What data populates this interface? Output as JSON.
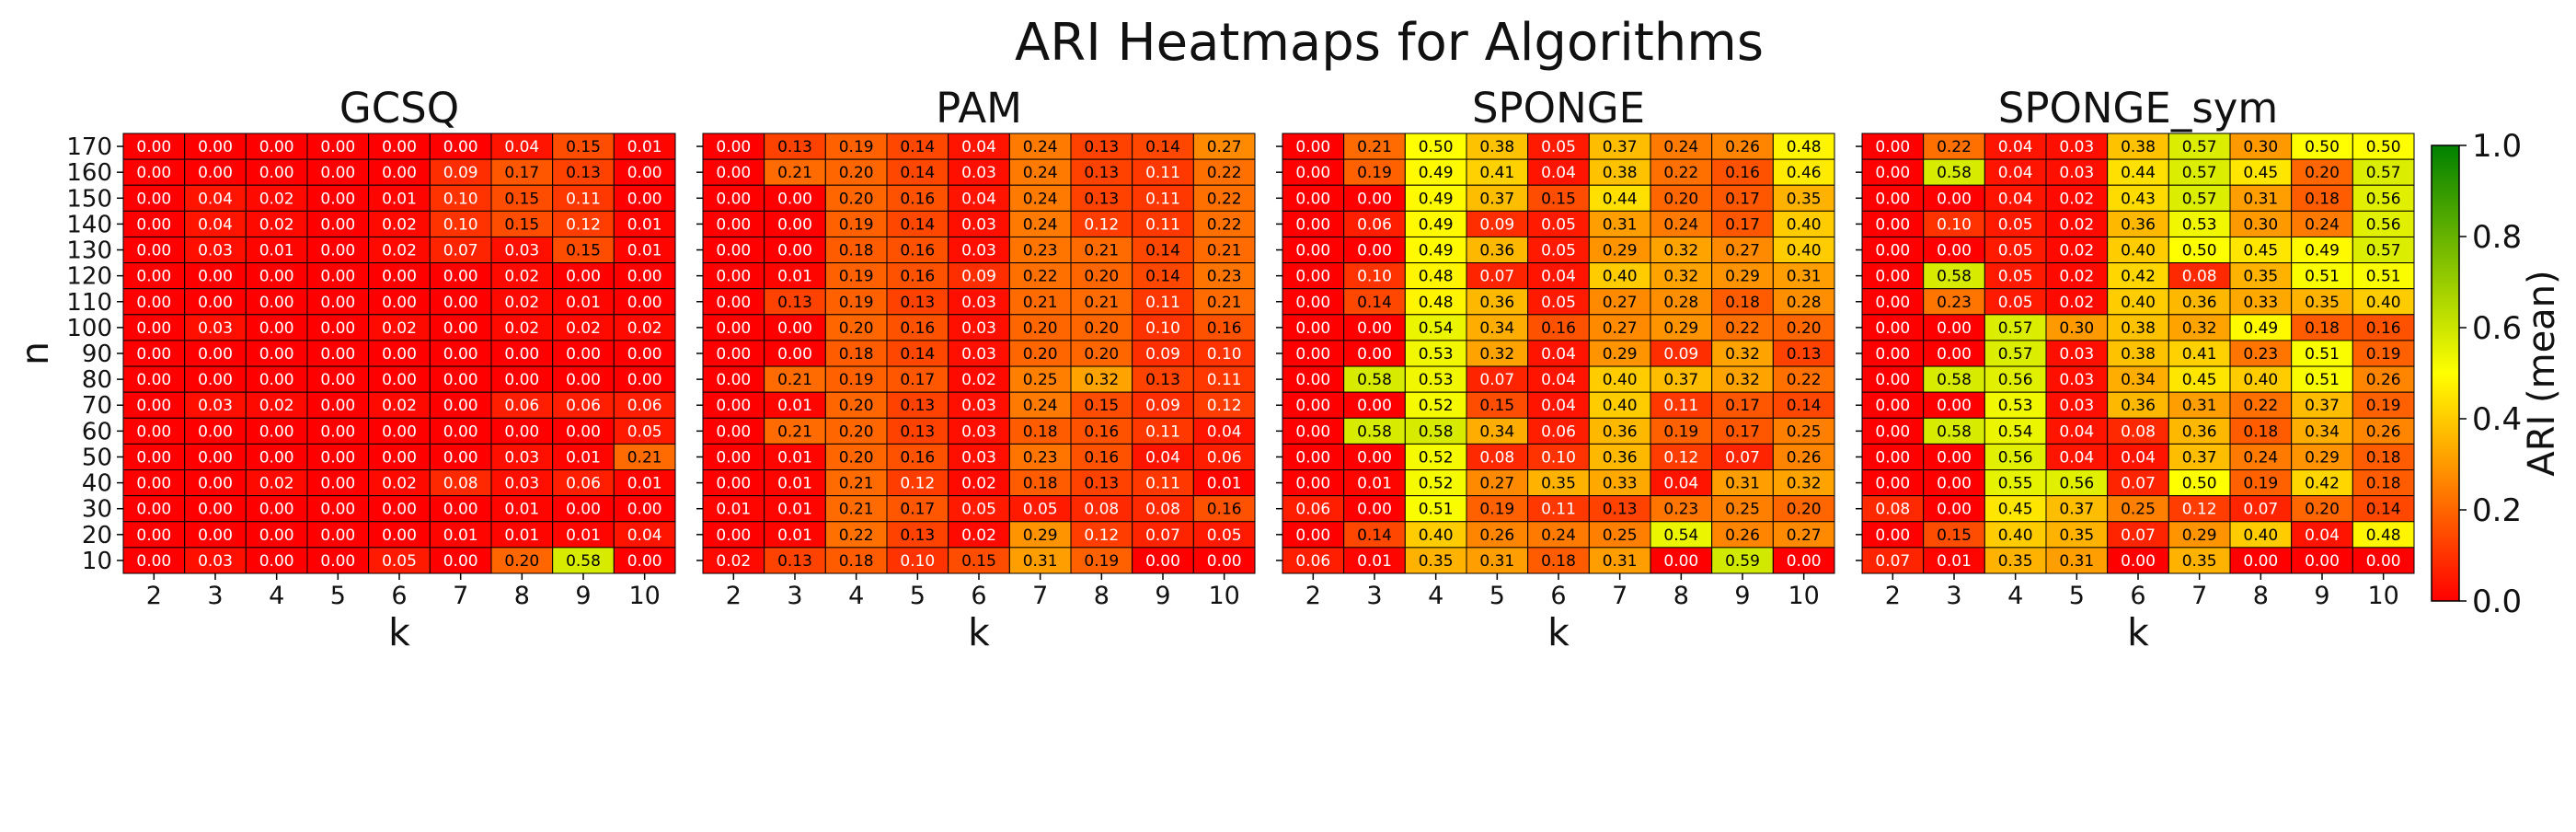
{
  "figure_title": "ARI Heatmaps for Algorithms",
  "colorbar": {
    "label": "ARI (mean)",
    "ticks": [
      "0.0",
      "0.2",
      "0.4",
      "0.6",
      "0.8",
      "1.0"
    ],
    "colors": [
      "#ff0000",
      "#ffff00",
      "#008000"
    ]
  },
  "chart_data": [
    {
      "type": "heatmap",
      "title": "GCSQ",
      "xlabel": "k",
      "ylabel": "n",
      "x": [
        "2",
        "3",
        "4",
        "5",
        "6",
        "7",
        "8",
        "9",
        "10"
      ],
      "y": [
        "170",
        "160",
        "150",
        "140",
        "130",
        "120",
        "110",
        "100",
        "90",
        "80",
        "70",
        "60",
        "50",
        "40",
        "30",
        "20",
        "10"
      ],
      "values": [
        [
          0.0,
          0.0,
          0.0,
          0.0,
          0.0,
          0.0,
          0.04,
          0.15,
          0.01
        ],
        [
          0.0,
          0.0,
          0.0,
          0.0,
          0.0,
          0.09,
          0.17,
          0.13,
          0.0
        ],
        [
          0.0,
          0.04,
          0.02,
          0.0,
          0.01,
          0.1,
          0.15,
          0.11,
          0.0
        ],
        [
          0.0,
          0.04,
          0.02,
          0.0,
          0.02,
          0.1,
          0.15,
          0.12,
          0.01
        ],
        [
          0.0,
          0.03,
          0.01,
          0.0,
          0.02,
          0.07,
          0.03,
          0.15,
          0.01
        ],
        [
          0.0,
          0.0,
          0.0,
          0.0,
          0.0,
          0.0,
          0.02,
          0.0,
          0.0
        ],
        [
          0.0,
          0.0,
          0.0,
          0.0,
          0.0,
          0.0,
          0.02,
          0.01,
          0.0
        ],
        [
          0.0,
          0.03,
          0.0,
          0.0,
          0.02,
          0.0,
          0.02,
          0.02,
          0.02
        ],
        [
          0.0,
          0.0,
          0.0,
          0.0,
          0.0,
          0.0,
          0.0,
          0.0,
          0.0
        ],
        [
          0.0,
          0.0,
          0.0,
          0.0,
          0.0,
          0.0,
          0.0,
          0.0,
          0.0
        ],
        [
          0.0,
          0.03,
          0.02,
          0.0,
          0.02,
          0.0,
          0.06,
          0.06,
          0.06
        ],
        [
          0.0,
          0.0,
          0.0,
          0.0,
          0.0,
          0.0,
          0.0,
          0.0,
          0.05
        ],
        [
          0.0,
          0.0,
          0.0,
          0.0,
          0.0,
          0.0,
          0.03,
          0.01,
          0.21
        ],
        [
          0.0,
          0.0,
          0.02,
          0.0,
          0.02,
          0.08,
          0.03,
          0.06,
          0.01
        ],
        [
          0.0,
          0.0,
          0.0,
          0.0,
          0.0,
          0.0,
          0.01,
          0.0,
          0.0
        ],
        [
          0.0,
          0.0,
          0.0,
          0.0,
          0.0,
          0.01,
          0.01,
          0.01,
          0.04
        ],
        [
          0.0,
          0.03,
          0.0,
          0.0,
          0.05,
          0.0,
          0.2,
          0.58,
          0.0
        ]
      ]
    },
    {
      "type": "heatmap",
      "title": "PAM",
      "xlabel": "k",
      "ylabel": "n",
      "x": [
        "2",
        "3",
        "4",
        "5",
        "6",
        "7",
        "8",
        "9",
        "10"
      ],
      "y": [
        "170",
        "160",
        "150",
        "140",
        "130",
        "120",
        "110",
        "100",
        "90",
        "80",
        "70",
        "60",
        "50",
        "40",
        "30",
        "20",
        "10"
      ],
      "values": [
        [
          0.0,
          0.13,
          0.19,
          0.14,
          0.04,
          0.24,
          0.13,
          0.14,
          0.27
        ],
        [
          0.0,
          0.21,
          0.2,
          0.14,
          0.03,
          0.24,
          0.13,
          0.11,
          0.22
        ],
        [
          0.0,
          0.0,
          0.2,
          0.16,
          0.04,
          0.24,
          0.13,
          0.11,
          0.22
        ],
        [
          0.0,
          0.0,
          0.19,
          0.14,
          0.03,
          0.24,
          0.12,
          0.11,
          0.22
        ],
        [
          0.0,
          0.0,
          0.18,
          0.16,
          0.03,
          0.23,
          0.21,
          0.14,
          0.21
        ],
        [
          0.0,
          0.01,
          0.19,
          0.16,
          0.09,
          0.22,
          0.2,
          0.14,
          0.23
        ],
        [
          0.0,
          0.13,
          0.19,
          0.13,
          0.03,
          0.21,
          0.21,
          0.11,
          0.21
        ],
        [
          0.0,
          0.0,
          0.2,
          0.16,
          0.03,
          0.2,
          0.2,
          0.1,
          0.16
        ],
        [
          0.0,
          0.0,
          0.18,
          0.14,
          0.03,
          0.2,
          0.2,
          0.09,
          0.1
        ],
        [
          0.0,
          0.21,
          0.19,
          0.17,
          0.02,
          0.25,
          0.32,
          0.13,
          0.11
        ],
        [
          0.0,
          0.01,
          0.2,
          0.13,
          0.03,
          0.24,
          0.15,
          0.09,
          0.12
        ],
        [
          0.0,
          0.21,
          0.2,
          0.13,
          0.03,
          0.18,
          0.16,
          0.11,
          0.04
        ],
        [
          0.0,
          0.01,
          0.2,
          0.16,
          0.03,
          0.23,
          0.16,
          0.04,
          0.06
        ],
        [
          0.0,
          0.01,
          0.21,
          0.12,
          0.02,
          0.18,
          0.13,
          0.11,
          0.01
        ],
        [
          0.01,
          0.01,
          0.21,
          0.17,
          0.05,
          0.05,
          0.08,
          0.08,
          0.16
        ],
        [
          0.0,
          0.01,
          0.22,
          0.13,
          0.02,
          0.29,
          0.12,
          0.07,
          0.05
        ],
        [
          0.02,
          0.13,
          0.18,
          0.1,
          0.15,
          0.31,
          0.19,
          0.0,
          0.0
        ]
      ]
    },
    {
      "type": "heatmap",
      "title": "SPONGE",
      "xlabel": "k",
      "ylabel": "n",
      "x": [
        "2",
        "3",
        "4",
        "5",
        "6",
        "7",
        "8",
        "9",
        "10"
      ],
      "y": [
        "170",
        "160",
        "150",
        "140",
        "130",
        "120",
        "110",
        "100",
        "90",
        "80",
        "70",
        "60",
        "50",
        "40",
        "30",
        "20",
        "10"
      ],
      "values": [
        [
          0.0,
          0.21,
          0.5,
          0.38,
          0.05,
          0.37,
          0.24,
          0.26,
          0.48
        ],
        [
          0.0,
          0.19,
          0.49,
          0.41,
          0.04,
          0.38,
          0.22,
          0.16,
          0.46
        ],
        [
          0.0,
          0.0,
          0.49,
          0.37,
          0.15,
          0.44,
          0.2,
          0.17,
          0.35
        ],
        [
          0.0,
          0.06,
          0.49,
          0.09,
          0.05,
          0.31,
          0.24,
          0.17,
          0.4
        ],
        [
          0.0,
          0.0,
          0.49,
          0.36,
          0.05,
          0.29,
          0.32,
          0.27,
          0.4
        ],
        [
          0.0,
          0.1,
          0.48,
          0.07,
          0.04,
          0.4,
          0.32,
          0.29,
          0.31
        ],
        [
          0.0,
          0.14,
          0.48,
          0.36,
          0.05,
          0.27,
          0.28,
          0.18,
          0.28
        ],
        [
          0.0,
          0.0,
          0.54,
          0.34,
          0.16,
          0.27,
          0.29,
          0.22,
          0.2
        ],
        [
          0.0,
          0.0,
          0.53,
          0.32,
          0.04,
          0.29,
          0.09,
          0.32,
          0.13
        ],
        [
          0.0,
          0.58,
          0.53,
          0.07,
          0.04,
          0.4,
          0.37,
          0.32,
          0.22
        ],
        [
          0.0,
          0.0,
          0.52,
          0.15,
          0.04,
          0.4,
          0.11,
          0.17,
          0.14
        ],
        [
          0.0,
          0.58,
          0.58,
          0.34,
          0.06,
          0.36,
          0.19,
          0.17,
          0.25
        ],
        [
          0.0,
          0.0,
          0.52,
          0.08,
          0.1,
          0.36,
          0.12,
          0.07,
          0.26
        ],
        [
          0.0,
          0.01,
          0.52,
          0.27,
          0.35,
          0.33,
          0.04,
          0.31,
          0.32
        ],
        [
          0.06,
          0.0,
          0.51,
          0.19,
          0.11,
          0.13,
          0.23,
          0.25,
          0.2
        ],
        [
          0.0,
          0.14,
          0.4,
          0.26,
          0.24,
          0.25,
          0.54,
          0.26,
          0.27
        ],
        [
          0.06,
          0.01,
          0.35,
          0.31,
          0.18,
          0.31,
          0.0,
          0.59,
          0.0
        ]
      ]
    },
    {
      "type": "heatmap",
      "title": "SPONGE_sym",
      "xlabel": "k",
      "ylabel": "n",
      "x": [
        "2",
        "3",
        "4",
        "5",
        "6",
        "7",
        "8",
        "9",
        "10"
      ],
      "y": [
        "170",
        "160",
        "150",
        "140",
        "130",
        "120",
        "110",
        "100",
        "90",
        "80",
        "70",
        "60",
        "50",
        "40",
        "30",
        "20",
        "10"
      ],
      "values": [
        [
          0.0,
          0.22,
          0.04,
          0.03,
          0.38,
          0.57,
          0.3,
          0.5,
          0.5
        ],
        [
          0.0,
          0.58,
          0.04,
          0.03,
          0.44,
          0.57,
          0.45,
          0.2,
          0.57
        ],
        [
          0.0,
          0.0,
          0.04,
          0.02,
          0.43,
          0.57,
          0.31,
          0.18,
          0.56
        ],
        [
          0.0,
          0.1,
          0.05,
          0.02,
          0.36,
          0.53,
          0.3,
          0.24,
          0.56
        ],
        [
          0.0,
          0.0,
          0.05,
          0.02,
          0.4,
          0.5,
          0.45,
          0.49,
          0.57
        ],
        [
          0.0,
          0.58,
          0.05,
          0.02,
          0.42,
          0.08,
          0.35,
          0.51,
          0.51
        ],
        [
          0.0,
          0.23,
          0.05,
          0.02,
          0.4,
          0.36,
          0.33,
          0.35,
          0.4
        ],
        [
          0.0,
          0.0,
          0.57,
          0.3,
          0.38,
          0.32,
          0.49,
          0.18,
          0.16
        ],
        [
          0.0,
          0.0,
          0.57,
          0.03,
          0.38,
          0.41,
          0.23,
          0.51,
          0.19
        ],
        [
          0.0,
          0.58,
          0.56,
          0.03,
          0.34,
          0.45,
          0.4,
          0.51,
          0.26
        ],
        [
          0.0,
          0.0,
          0.53,
          0.03,
          0.36,
          0.31,
          0.22,
          0.37,
          0.19
        ],
        [
          0.0,
          0.58,
          0.54,
          0.04,
          0.08,
          0.36,
          0.18,
          0.34,
          0.26
        ],
        [
          0.0,
          0.0,
          0.56,
          0.04,
          0.04,
          0.37,
          0.24,
          0.29,
          0.18
        ],
        [
          0.0,
          0.0,
          0.55,
          0.56,
          0.07,
          0.5,
          0.19,
          0.42,
          0.18
        ],
        [
          0.08,
          0.0,
          0.45,
          0.37,
          0.25,
          0.12,
          0.07,
          0.2,
          0.14
        ],
        [
          0.0,
          0.15,
          0.4,
          0.35,
          0.07,
          0.29,
          0.4,
          0.04,
          0.48
        ],
        [
          0.07,
          0.01,
          0.35,
          0.31,
          0.0,
          0.35,
          0.0,
          0.0,
          0.0
        ]
      ]
    }
  ]
}
